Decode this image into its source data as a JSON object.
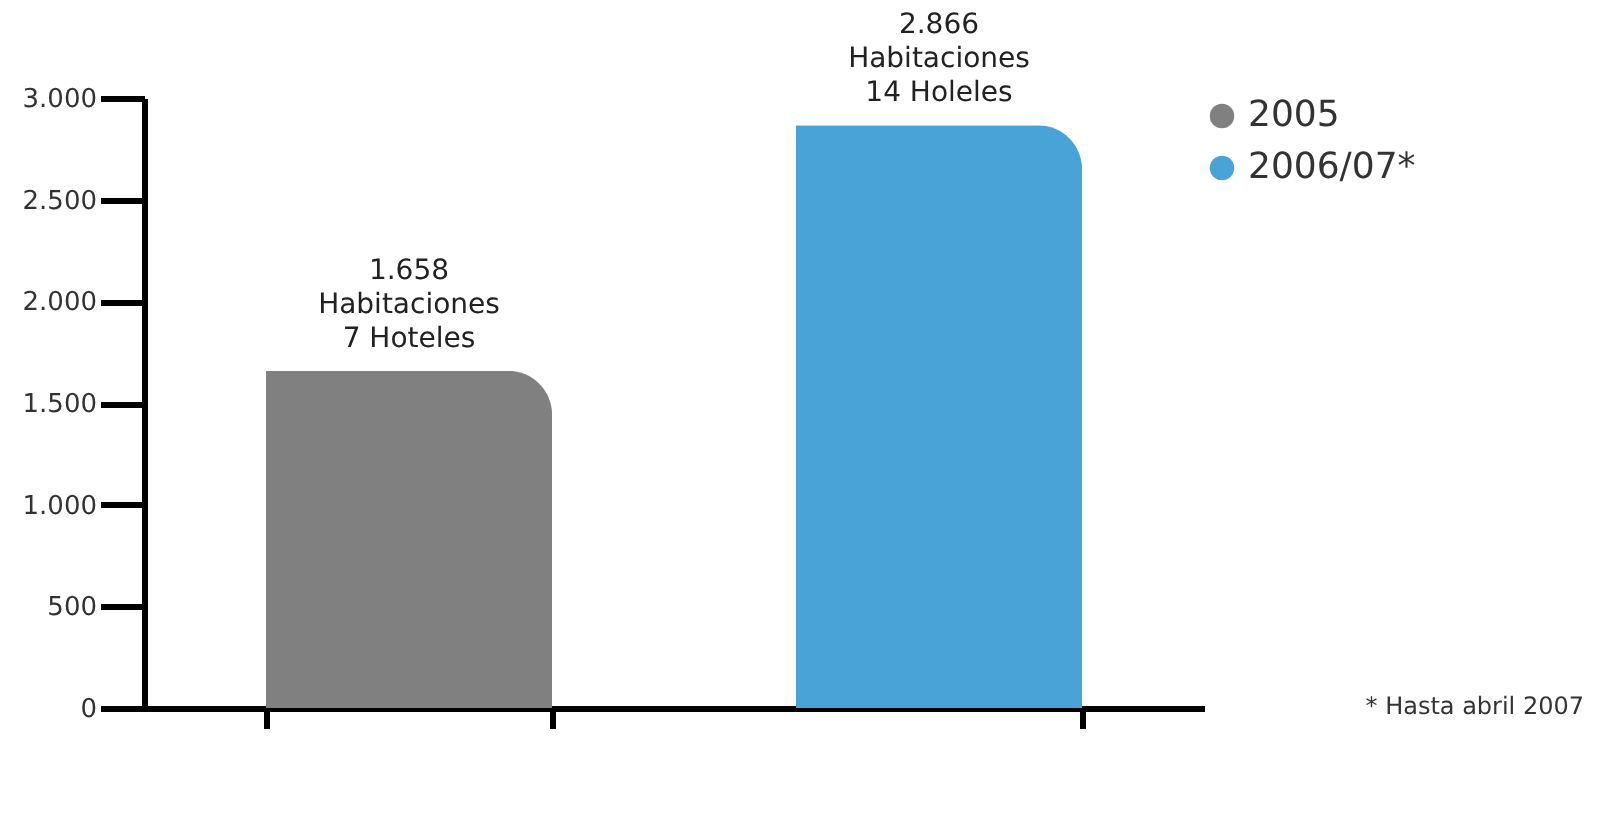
{
  "chart_data": {
    "type": "bar",
    "categories": [
      null,
      null
    ],
    "series": [
      {
        "name": "2005",
        "color": "#808080",
        "values": [
          1658,
          null
        ],
        "value_labels": [
          "1.658\nHabitaciones\n7 Hoteles",
          null
        ]
      },
      {
        "name": "2006/07*",
        "color": "#4aa3d6",
        "values": [
          null,
          2866
        ],
        "value_labels": [
          null,
          "2.866\nHabitaciones\n14 Holeles"
        ]
      }
    ],
    "ylim": [
      0,
      3000
    ],
    "yticks": [
      {
        "value": 0,
        "label": "0"
      },
      {
        "value": 500,
        "label": "500"
      },
      {
        "value": 1000,
        "label": "1.000"
      },
      {
        "value": 1500,
        "label": "1.500"
      },
      {
        "value": 2000,
        "label": "2.000"
      },
      {
        "value": 2500,
        "label": "2.500"
      },
      {
        "value": 3000,
        "label": "3.000"
      }
    ],
    "grid": false,
    "legend": "right",
    "tick_labels": "y",
    "annotations": [
      "* Hasta abril 2007"
    ]
  }
}
